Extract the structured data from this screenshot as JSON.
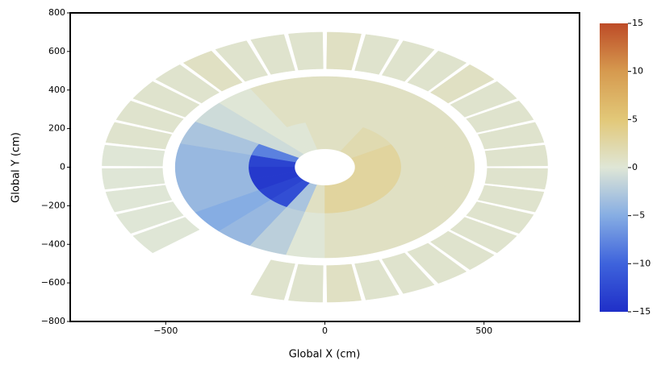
{
  "chart_data": {
    "type": "polar-heatmap",
    "xlabel": "Global X (cm)",
    "ylabel": "Global Y (cm)",
    "xlim": [
      -800,
      800
    ],
    "ylim": [
      -800,
      800
    ],
    "xticks": [
      {
        "value": -500,
        "label": "−500"
      },
      0,
      500
    ],
    "yticks": [
      800,
      600,
      400,
      200,
      0,
      {
        "value": -200,
        "label": "−200"
      },
      {
        "value": -400,
        "label": "−400"
      },
      {
        "value": -600,
        "label": "−600"
      },
      {
        "value": -800,
        "label": "−800"
      }
    ],
    "colorbar": {
      "lim": [
        -15,
        15
      ],
      "ticks": [
        15,
        10,
        5,
        0,
        {
          "value": -5,
          "label": "−5"
        },
        {
          "value": -10,
          "label": "−10"
        },
        {
          "value": -15,
          "label": "−15"
        }
      ],
      "colormap": [
        "#1f2fc8",
        "#3e63dc",
        "#86ade3",
        "#dfe6d6",
        "#e2c878",
        "#d69a4f",
        "#bd4b27"
      ]
    },
    "rings": [
      {
        "r": [
          95,
          240
        ],
        "values": [
          3,
          3,
          2,
          2,
          1,
          1,
          1,
          0,
          0,
          -1,
          -8,
          -13,
          -14,
          -14,
          -13,
          -12,
          -3,
          1,
          3,
          3,
          3,
          3,
          3,
          3
        ]
      },
      {
        "r": [
          240,
          470
        ],
        "values": [
          1,
          1,
          1,
          1,
          1,
          1,
          1,
          1,
          0,
          -1,
          -3,
          -4,
          -4,
          -4,
          -5,
          -4,
          -2,
          0,
          1,
          1,
          1,
          1,
          1,
          1
        ]
      },
      {
        "r": [
          510,
          700
        ],
        "values": [
          0.5,
          0.5,
          0.5,
          0.5,
          1,
          0.5,
          0.5,
          0.5,
          1,
          0.5,
          0.5,
          0.5,
          1,
          0.5,
          0.5,
          0.5,
          0.5,
          0,
          0,
          0,
          0,
          0,
          null,
          null,
          null,
          0.5,
          0.5,
          1,
          0.5,
          0.5,
          0.5,
          0.5,
          0.5,
          0.5,
          0.5,
          0.5
        ]
      }
    ]
  }
}
